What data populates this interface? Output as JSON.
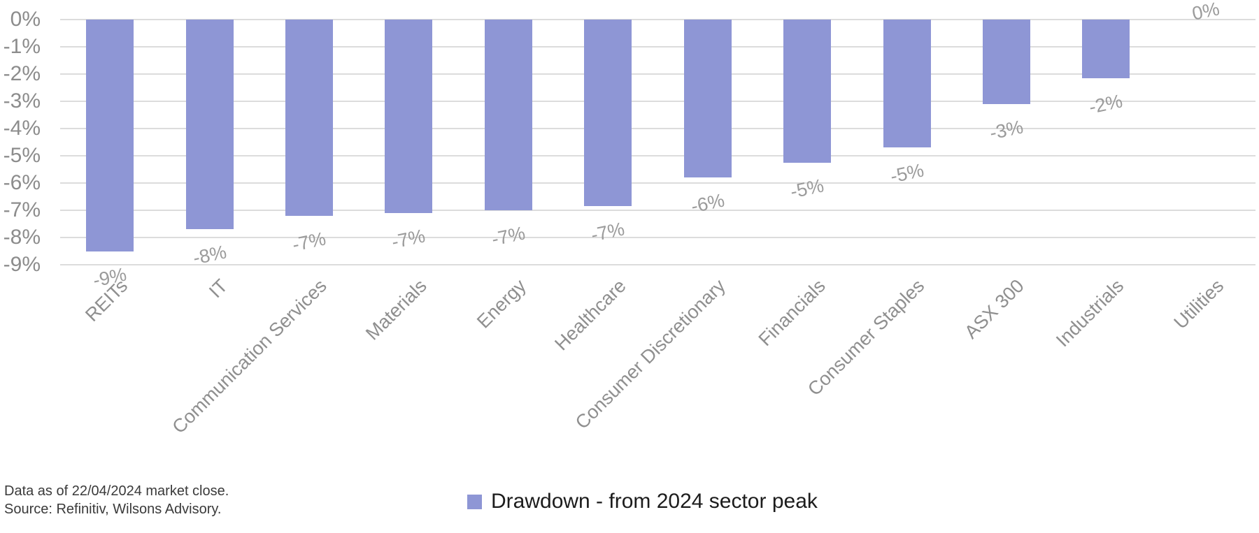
{
  "chart_data": {
    "type": "bar",
    "title": "",
    "categories": [
      "REITs",
      "IT",
      "Communication Services",
      "Materials",
      "Energy",
      "Healthcare",
      "Consumer Discretionary",
      "Financials",
      "Consumer Staples",
      "ASX 300",
      "Industrials",
      "Utilities"
    ],
    "series": [
      {
        "name": "Drawdown - from 2024 sector peak",
        "values": [
          -8.5,
          -7.7,
          -7.2,
          -7.1,
          -7.0,
          -6.85,
          -5.8,
          -5.25,
          -4.7,
          -3.1,
          -2.15,
          0
        ],
        "data_labels": [
          "-9%",
          "-8%",
          "-7%",
          "-7%",
          "-7%",
          "-7%",
          "-6%",
          "-5%",
          "-5%",
          "-3%",
          "-2%",
          "0%"
        ]
      }
    ],
    "xlabel": "",
    "ylabel": "",
    "ylim": [
      -9,
      0
    ],
    "y_tick_labels": [
      "0%",
      "-1%",
      "-2%",
      "-3%",
      "-4%",
      "-5%",
      "-6%",
      "-7%",
      "-8%",
      "-9%"
    ],
    "grid": true,
    "legend_position": "bottom-center",
    "bar_color": "#8e96d5",
    "gridline_color": "#dcdcdc",
    "tick_label_color": "#8c8c8c",
    "data_label_color": "#9b9b9b"
  },
  "legend": {
    "label": "Drawdown - from 2024 sector peak",
    "marker_color": "#8e96d5"
  },
  "footer": {
    "line1": "Data as of 22/04/2024 market close.",
    "line2": "Source: Refinitiv, Wilsons Advisory."
  }
}
